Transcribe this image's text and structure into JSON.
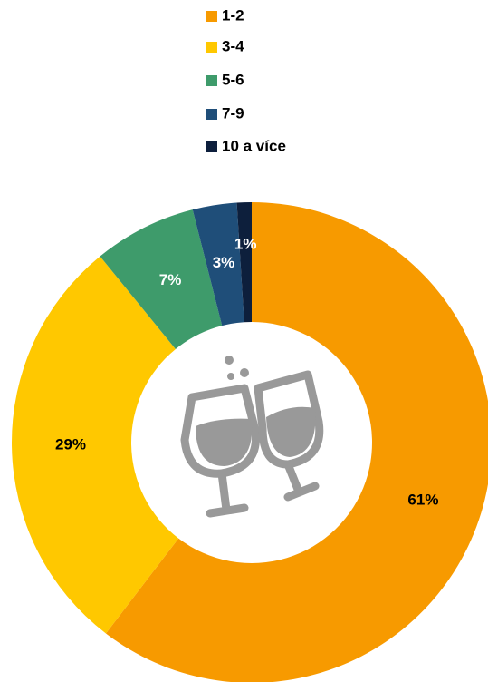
{
  "chart_data": {
    "type": "donut",
    "categories": [
      "1-2",
      "3-4",
      "5-6",
      "7-9",
      "10 a více"
    ],
    "values": [
      61,
      29,
      7,
      3,
      1
    ],
    "value_labels": [
      "61%",
      "29%",
      "7%",
      "3%",
      "1%"
    ],
    "colors": [
      "#f79a00",
      "#ffc800",
      "#3e9b6b",
      "#1f4e79",
      "#0d1f3c"
    ],
    "label_colors": [
      "#000000",
      "#000000",
      "#ffffff",
      "#ffffff",
      "#ffffff"
    ],
    "legend": "top"
  }
}
